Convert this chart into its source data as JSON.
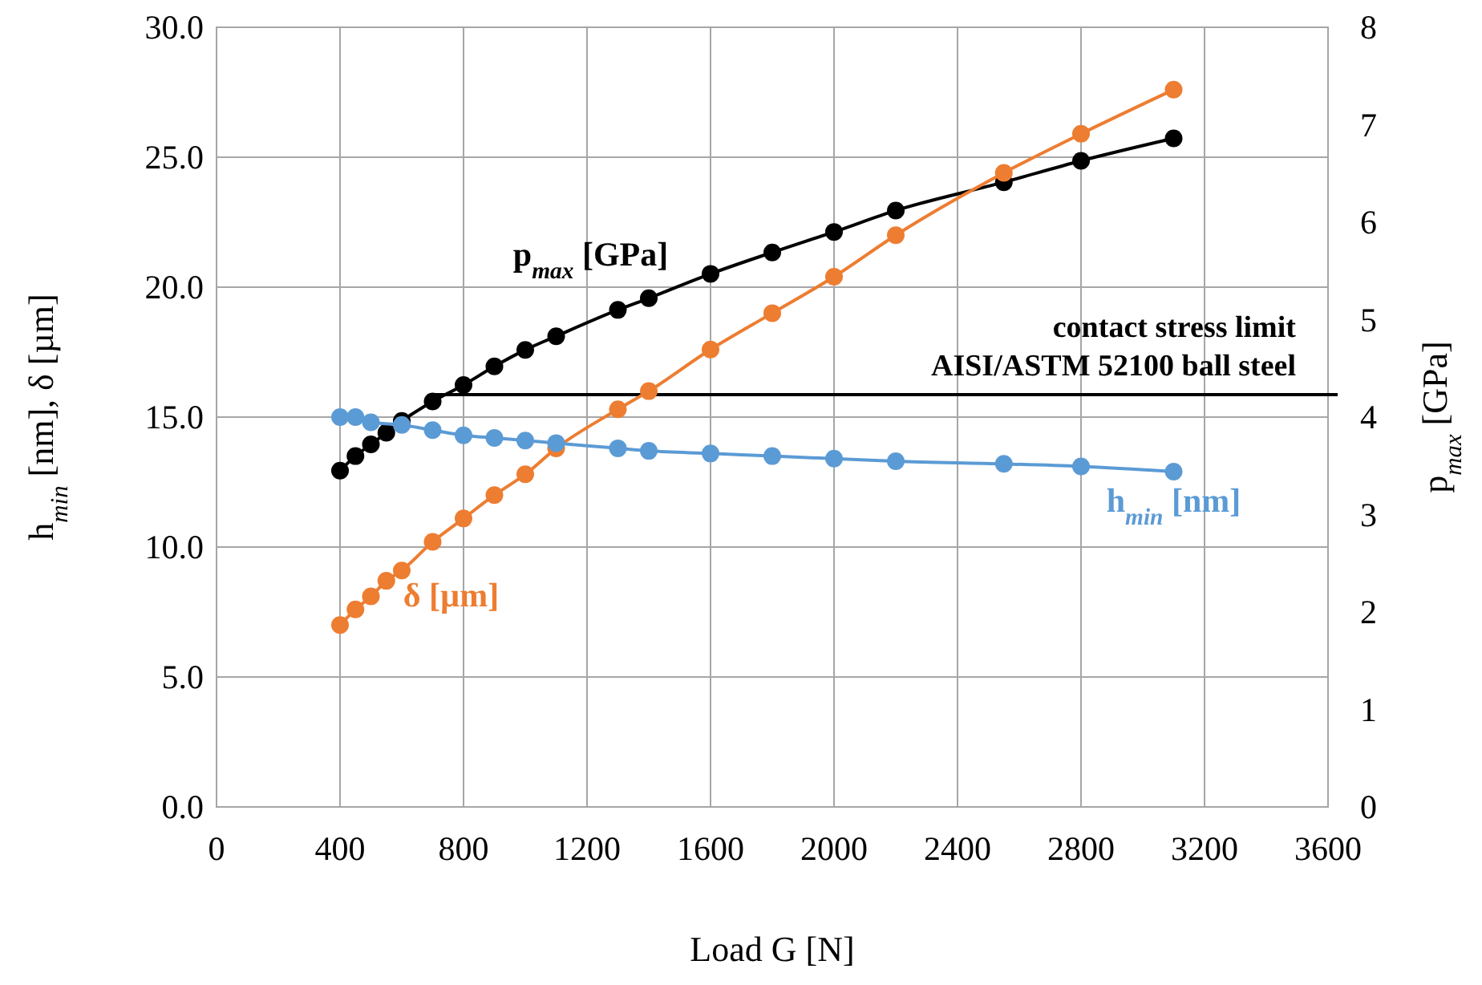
{
  "chart_data": {
    "type": "line",
    "xlabel": "Load G [N]",
    "ylabel": "h$_{min}$ [nm], δ [µm]",
    "y2label": "p$_{max}$ [GPa]",
    "xlim": [
      0,
      3600
    ],
    "xticks": [
      0,
      400,
      800,
      1200,
      1600,
      2000,
      2400,
      2800,
      3200,
      3600
    ],
    "ylim": [
      0,
      30
    ],
    "yticks": [
      {
        "value": 0,
        "label": "0.0"
      },
      {
        "value": 5,
        "label": "5.0"
      },
      {
        "value": 10,
        "label": "10.0"
      },
      {
        "value": 15,
        "label": "15.0"
      },
      {
        "value": 20,
        "label": "20.0"
      },
      {
        "value": 25,
        "label": "25.0"
      },
      {
        "value": 30,
        "label": "30.0"
      }
    ],
    "y2lim": [
      0,
      8
    ],
    "y2ticks": [
      0,
      1,
      2,
      3,
      4,
      5,
      6,
      7,
      8
    ],
    "grid": true,
    "marker": "circle",
    "line_style": "solid",
    "series": [
      {
        "name": "p$_{max}$ [GPa]",
        "color": "#000000",
        "axis": "y2",
        "x": [
          400,
          450,
          500,
          550,
          600,
          700,
          800,
          900,
          1000,
          1100,
          1300,
          1400,
          1600,
          1800,
          2000,
          2200,
          2550,
          2800,
          3100
        ],
        "values": [
          3.45,
          3.6,
          3.72,
          3.84,
          3.96,
          4.16,
          4.33,
          4.52,
          4.69,
          4.83,
          5.1,
          5.22,
          5.47,
          5.69,
          5.9,
          6.12,
          6.41,
          6.63,
          6.86
        ]
      },
      {
        "name": "δ [µm]",
        "color": "#ed7d31",
        "x": [
          400,
          450,
          500,
          550,
          600,
          700,
          800,
          900,
          1000,
          1100,
          1300,
          1400,
          1600,
          1800,
          2000,
          2200,
          2550,
          2800,
          3100
        ],
        "values": [
          7.0,
          7.6,
          8.1,
          8.7,
          9.1,
          10.2,
          11.1,
          12.0,
          12.8,
          13.8,
          15.3,
          16.0,
          17.6,
          19.0,
          20.4,
          22.0,
          24.4,
          25.9,
          27.6
        ]
      },
      {
        "name": "h$_{min}$ [nm]",
        "color": "#5b9bd5",
        "x": [
          400,
          450,
          500,
          600,
          700,
          800,
          900,
          1000,
          1100,
          1300,
          1400,
          1600,
          1800,
          2000,
          2200,
          2550,
          2800,
          3100
        ],
        "values": [
          15.0,
          15.0,
          14.8,
          14.7,
          14.5,
          14.3,
          14.2,
          14.1,
          14.0,
          13.8,
          13.7,
          13.6,
          13.5,
          13.4,
          13.3,
          13.2,
          13.1,
          12.9
        ]
      }
    ],
    "ref_lines": [
      {
        "axis": "y2",
        "value": 4.23,
        "label": "contact stress limit\nAISI/ASTM 52100 ball steel",
        "color": "#000000"
      }
    ]
  }
}
